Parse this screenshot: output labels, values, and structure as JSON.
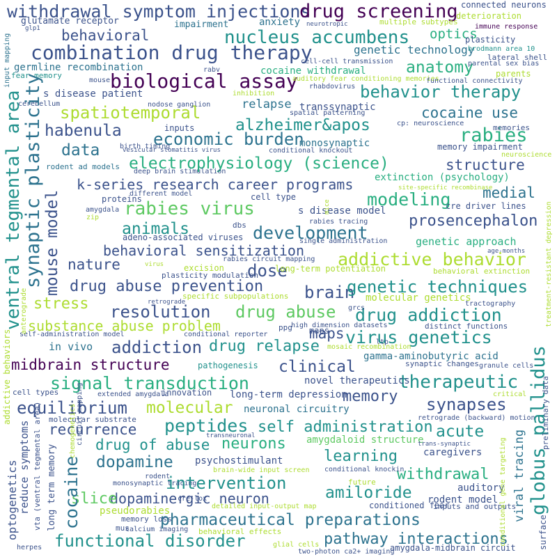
{
  "colors": {
    "background": "#ffffff",
    "palette": [
      "#440154",
      "#3b528b",
      "#2c728e",
      "#21918c",
      "#28ae80",
      "#5ec962",
      "#addc30",
      "#fde725"
    ]
  },
  "words": [
    {
      "text": "withdrawal symptom injections",
      "color": "#3b528b"
    },
    {
      "text": "drug screening",
      "color": "#440154"
    },
    {
      "text": "combination drug therapy",
      "color": "#3b528b"
    },
    {
      "text": "behavioral",
      "color": "#3b528b"
    },
    {
      "text": "nucleus accumbens",
      "color": "#21918c"
    },
    {
      "text": "biological assay",
      "color": "#440154"
    },
    {
      "text": "anatomy",
      "color": "#28ae80"
    },
    {
      "text": "behavior therapy",
      "color": "#21918c"
    },
    {
      "text": "spatiotemporal",
      "color": "#addc30"
    },
    {
      "text": "alzheimer&apos",
      "color": "#21918c"
    },
    {
      "text": "habenula",
      "color": "#3b528b"
    },
    {
      "text": "economic burden",
      "color": "#2c728e"
    },
    {
      "text": "rabies",
      "color": "#28ae80"
    },
    {
      "text": "cocaine use",
      "color": "#2c728e"
    },
    {
      "text": "data",
      "color": "#2c728e"
    },
    {
      "text": "electrophysiology (science)",
      "color": "#28ae80"
    },
    {
      "text": "structure",
      "color": "#3b528b"
    },
    {
      "text": "k-series research career programs",
      "color": "#3b528b"
    },
    {
      "text": "modeling",
      "color": "#28ae80"
    },
    {
      "text": "rabies virus",
      "color": "#5ec962"
    },
    {
      "text": "medial",
      "color": "#2c728e"
    },
    {
      "text": "animals",
      "color": "#21918c"
    },
    {
      "text": "development",
      "color": "#2c728e"
    },
    {
      "text": "prosencephalon",
      "color": "#3b528b"
    },
    {
      "text": "behavioral sensitization",
      "color": "#3b528b"
    },
    {
      "text": "addictive behavior",
      "color": "#addc30"
    },
    {
      "text": "nature",
      "color": "#3b528b"
    },
    {
      "text": "dose",
      "color": "#3b528b"
    },
    {
      "text": "drug abuse prevention",
      "color": "#3b528b"
    },
    {
      "text": "brain",
      "color": "#3b528b"
    },
    {
      "text": "genetic techniques",
      "color": "#21918c"
    },
    {
      "text": "stress",
      "color": "#addc30"
    },
    {
      "text": "resolution",
      "color": "#3b528b"
    },
    {
      "text": "drug abuse",
      "color": "#5ec962"
    },
    {
      "text": "drug addiction",
      "color": "#21918c"
    },
    {
      "text": "substance abuse problem",
      "color": "#addc30"
    },
    {
      "text": "maps",
      "color": "#3b528b"
    },
    {
      "text": "virus genetics",
      "color": "#21918c"
    },
    {
      "text": "addiction",
      "color": "#3b528b"
    },
    {
      "text": "drug relapse",
      "color": "#21918c"
    },
    {
      "text": "midbrain structure",
      "color": "#440154"
    },
    {
      "text": "clinical",
      "color": "#3b528b"
    },
    {
      "text": "signal transduction",
      "color": "#28ae80"
    },
    {
      "text": "therapeutic",
      "color": "#21918c"
    },
    {
      "text": "memory",
      "color": "#3b528b"
    },
    {
      "text": "equilibrium",
      "color": "#3b528b"
    },
    {
      "text": "molecular",
      "color": "#addc30"
    },
    {
      "text": "synapses",
      "color": "#3b528b"
    },
    {
      "text": "peptides",
      "color": "#21918c"
    },
    {
      "text": "self administration",
      "color": "#21918c"
    },
    {
      "text": "acute",
      "color": "#21918c"
    },
    {
      "text": "recurrence",
      "color": "#3b528b"
    },
    {
      "text": "neurons",
      "color": "#28ae80"
    },
    {
      "text": "drug of abuse",
      "color": "#21918c"
    },
    {
      "text": "dopamine",
      "color": "#2c728e"
    },
    {
      "text": "learning",
      "color": "#21918c"
    },
    {
      "text": "withdrawal",
      "color": "#28ae80"
    },
    {
      "text": "intervention",
      "color": "#21918c"
    },
    {
      "text": "amiloride",
      "color": "#21918c"
    },
    {
      "text": "dopaminergic neuron",
      "color": "#3b528b"
    },
    {
      "text": "pharmaceutical preparations",
      "color": "#2c728e"
    },
    {
      "text": "functional disorder",
      "color": "#21918c"
    },
    {
      "text": "pathway interactions",
      "color": "#2c728e"
    },
    {
      "text": "optics",
      "color": "#28ae80"
    },
    {
      "text": "genetic technology",
      "color": "#2c728e"
    },
    {
      "text": "anxiety",
      "color": "#2c728e"
    },
    {
      "text": "impairment",
      "color": "#2c728e"
    },
    {
      "text": "germline recombination",
      "color": "#2c728e"
    },
    {
      "text": "cocaine withdrawal",
      "color": "#28ae80"
    },
    {
      "text": "s disease patient",
      "color": "#3b528b"
    },
    {
      "text": "relapse",
      "color": "#2c728e"
    },
    {
      "text": "transsynaptic",
      "color": "#3b528b"
    },
    {
      "text": "monosynaptic",
      "color": "#2c728e"
    },
    {
      "text": "extinction (psychology)",
      "color": "#28ae80"
    },
    {
      "text": "genetic approach",
      "color": "#28ae80"
    },
    {
      "text": "molecular genetics",
      "color": "#addc30"
    },
    {
      "text": "gamma-aminobutyric acid",
      "color": "#2c728e"
    },
    {
      "text": "novel therapeutics",
      "color": "#3b528b"
    },
    {
      "text": "long-term depression",
      "color": "#3b528b"
    },
    {
      "text": "neuronal circuitry",
      "color": "#2c728e"
    },
    {
      "text": "amygdaloid structure",
      "color": "#5ec962"
    },
    {
      "text": "psychostimulant",
      "color": "#3b528b"
    },
    {
      "text": "slice",
      "color": "#5ec962"
    },
    {
      "text": "auditory",
      "color": "#3b528b"
    },
    {
      "text": "pseudorabies",
      "color": "#addc30"
    },
    {
      "text": "rodent model",
      "color": "#3b528b"
    },
    {
      "text": "caregivers",
      "color": "#3b528b"
    },
    {
      "text": "in vivo",
      "color": "#2c728e"
    },
    {
      "text": "s disease model",
      "color": "#3b528b"
    },
    {
      "text": "cre driver lines",
      "color": "#3b528b"
    },
    {
      "text": "memory impairment",
      "color": "#3b528b"
    },
    {
      "text": "glutamate receptor",
      "color": "#3b528b"
    },
    {
      "text": "deterioration",
      "color": "#addc30"
    },
    {
      "text": "plasticity",
      "color": "#3b528b"
    },
    {
      "text": "connected neurons",
      "color": "#3b528b"
    },
    {
      "text": "parents",
      "color": "#addc30"
    },
    {
      "text": "cell type",
      "color": "#3b528b"
    },
    {
      "text": "proteins",
      "color": "#3b528b"
    },
    {
      "text": "inputs",
      "color": "#3b528b"
    },
    {
      "text": "excision",
      "color": "#addc30"
    },
    {
      "text": "long-term potentiation",
      "color": "#addc30"
    },
    {
      "text": "maps",
      "color": "#3b528b"
    },
    {
      "text": "multiple subtypes",
      "color": "#addc30"
    },
    {
      "text": "immune response",
      "color": "#440154"
    },
    {
      "text": "brodmann area 10",
      "color": "#21918c"
    },
    {
      "text": "lateral shell",
      "color": "#3b528b"
    },
    {
      "text": "parental sex bias",
      "color": "#3b528b"
    },
    {
      "text": "fear memory",
      "color": "#21918c"
    },
    {
      "text": "mouse",
      "color": "#3b528b"
    },
    {
      "text": "rabv",
      "color": "#3b528b"
    },
    {
      "text": "rhabdovirus",
      "color": "#3b528b"
    },
    {
      "text": "cell-cell transmission",
      "color": "#3b528b"
    },
    {
      "text": "auditory fear conditioning memories",
      "color": "#addc30"
    },
    {
      "text": "functional connectivity",
      "color": "#3b528b"
    },
    {
      "text": "cerebellum",
      "color": "#3b528b"
    },
    {
      "text": "nodose ganglion",
      "color": "#3b528b"
    },
    {
      "text": "inhibition",
      "color": "#addc30"
    },
    {
      "text": "spatial patterning",
      "color": "#3b528b"
    },
    {
      "text": "cp: neuroscience",
      "color": "#3b528b"
    },
    {
      "text": "memories",
      "color": "#3b528b"
    },
    {
      "text": "neuroscience",
      "color": "#addc30"
    },
    {
      "text": "birth timing",
      "color": "#3b528b"
    },
    {
      "text": "vesicular stomatitis virus",
      "color": "#3b528b"
    },
    {
      "text": "conditional knockout",
      "color": "#3b528b"
    },
    {
      "text": "rodent ad models",
      "color": "#2c728e"
    },
    {
      "text": "deep brain stimulation",
      "color": "#3b528b"
    },
    {
      "text": "different model",
      "color": "#3b528b"
    },
    {
      "text": "site-specific recombinase",
      "color": "#addc30"
    },
    {
      "text": "mice",
      "color": "#addc30"
    },
    {
      "text": "amygdala",
      "color": "#3b528b"
    },
    {
      "text": "zip",
      "color": "#addc30"
    },
    {
      "text": "adeno-associated viruses",
      "color": "#3b528b"
    },
    {
      "text": "dbs",
      "color": "#3b528b"
    },
    {
      "text": "rabies tracing",
      "color": "#3b528b"
    },
    {
      "text": "single administration",
      "color": "#3b528b"
    },
    {
      "text": "age-months",
      "color": "#3b528b"
    },
    {
      "text": "virus",
      "color": "#addc30"
    },
    {
      "text": "rabies circuit mapping",
      "color": "#3b528b"
    },
    {
      "text": "plasticity modulation",
      "color": "#3b528b"
    },
    {
      "text": "behavioral extinction",
      "color": "#addc30"
    },
    {
      "text": "specific subpopulations",
      "color": "#addc30"
    },
    {
      "text": "retrograde",
      "color": "#3b528b"
    },
    {
      "text": "tractography",
      "color": "#3b528b"
    },
    {
      "text": "grcs",
      "color": "#3b528b"
    },
    {
      "text": "ppg",
      "color": "#3b528b"
    },
    {
      "text": "high dimension datasets",
      "color": "#3b528b"
    },
    {
      "text": "distinct functions",
      "color": "#3b528b"
    },
    {
      "text": "self-administration model",
      "color": "#3b528b"
    },
    {
      "text": "conditional reporter",
      "color": "#3b528b"
    },
    {
      "text": "ltp",
      "color": "#3b528b"
    },
    {
      "text": "mosaic recombination",
      "color": "#addc30"
    },
    {
      "text": "synaptic changes",
      "color": "#3b528b"
    },
    {
      "text": "granule cells",
      "color": "#3b528b"
    },
    {
      "text": "pathogenesis",
      "color": "#21918c"
    },
    {
      "text": "innovation",
      "color": "#3b528b"
    },
    {
      "text": "cell types",
      "color": "#3b528b"
    },
    {
      "text": "extended amygdala",
      "color": "#3b528b"
    },
    {
      "text": "critical",
      "color": "#addc30"
    },
    {
      "text": "molecular substrate",
      "color": "#3b528b"
    },
    {
      "text": "retrograde (backward) motion",
      "color": "#3b528b"
    },
    {
      "text": "transneuronal",
      "color": "#3b528b"
    },
    {
      "text": "trans-synaptic",
      "color": "#3b528b"
    },
    {
      "text": "conditional knockin",
      "color": "#3b528b"
    },
    {
      "text": "brain-wide input screen",
      "color": "#addc30"
    },
    {
      "text": "monosynaptic tracing",
      "color": "#3b528b"
    },
    {
      "text": "rodent",
      "color": "#3b528b"
    },
    {
      "text": "future",
      "color": "#addc30"
    },
    {
      "text": "cre-lox",
      "color": "#3b528b"
    },
    {
      "text": "detailed input-output map",
      "color": "#addc30"
    },
    {
      "text": "conditioned fear",
      "color": "#3b528b"
    },
    {
      "text": "inputs and outputs",
      "color": "#3b528b"
    },
    {
      "text": "memory loss",
      "color": "#3b528b"
    },
    {
      "text": "mus",
      "color": "#3b528b"
    },
    {
      "text": "calcium imaging",
      "color": "#3b528b"
    },
    {
      "text": "behavioral effects",
      "color": "#addc30"
    },
    {
      "text": "glial cells",
      "color": "#addc30"
    },
    {
      "text": "two-photon ca2+ imaging",
      "color": "#3b528b"
    },
    {
      "text": "amygdala-midbrain circuit",
      "color": "#3b528b"
    },
    {
      "text": "herpes",
      "color": "#3b528b"
    },
    {
      "text": "neurotropic",
      "color": "#3b528b"
    },
    {
      "text": "glp1",
      "color": "#3b528b"
    },
    {
      "text": "ventral tegmental area",
      "color": "#21918c"
    },
    {
      "text": "synaptic plasticity",
      "color": "#2c728e"
    },
    {
      "text": "mouse model",
      "color": "#3b528b"
    },
    {
      "text": "cocaine",
      "color": "#2c728e"
    },
    {
      "text": "globus pallidus",
      "color": "#21918c"
    },
    {
      "text": "viral tracing",
      "color": "#2c728e"
    },
    {
      "text": "optogenetics",
      "color": "#3b528b"
    },
    {
      "text": "reduce symptoms",
      "color": "#3b528b"
    },
    {
      "text": "long term memory",
      "color": "#3b528b"
    },
    {
      "text": "vta (ventral tegmental area)",
      "color": "#3b528b"
    },
    {
      "text": "addictive behaviors",
      "color": "#addc30"
    },
    {
      "text": "input mapping",
      "color": "#2c728e"
    },
    {
      "text": "treatment-resistant depression",
      "color": "#addc30"
    },
    {
      "text": "preliminary data",
      "color": "#3b528b"
    },
    {
      "text": "surface",
      "color": "#3b528b"
    },
    {
      "text": "conditional gene targeting",
      "color": "#addc30"
    },
    {
      "text": "circuit mapping",
      "color": "#3b528b"
    },
    {
      "text": "chemogenetics",
      "color": "#addc30"
    },
    {
      "text": "anterograde",
      "color": "#addc30"
    }
  ]
}
